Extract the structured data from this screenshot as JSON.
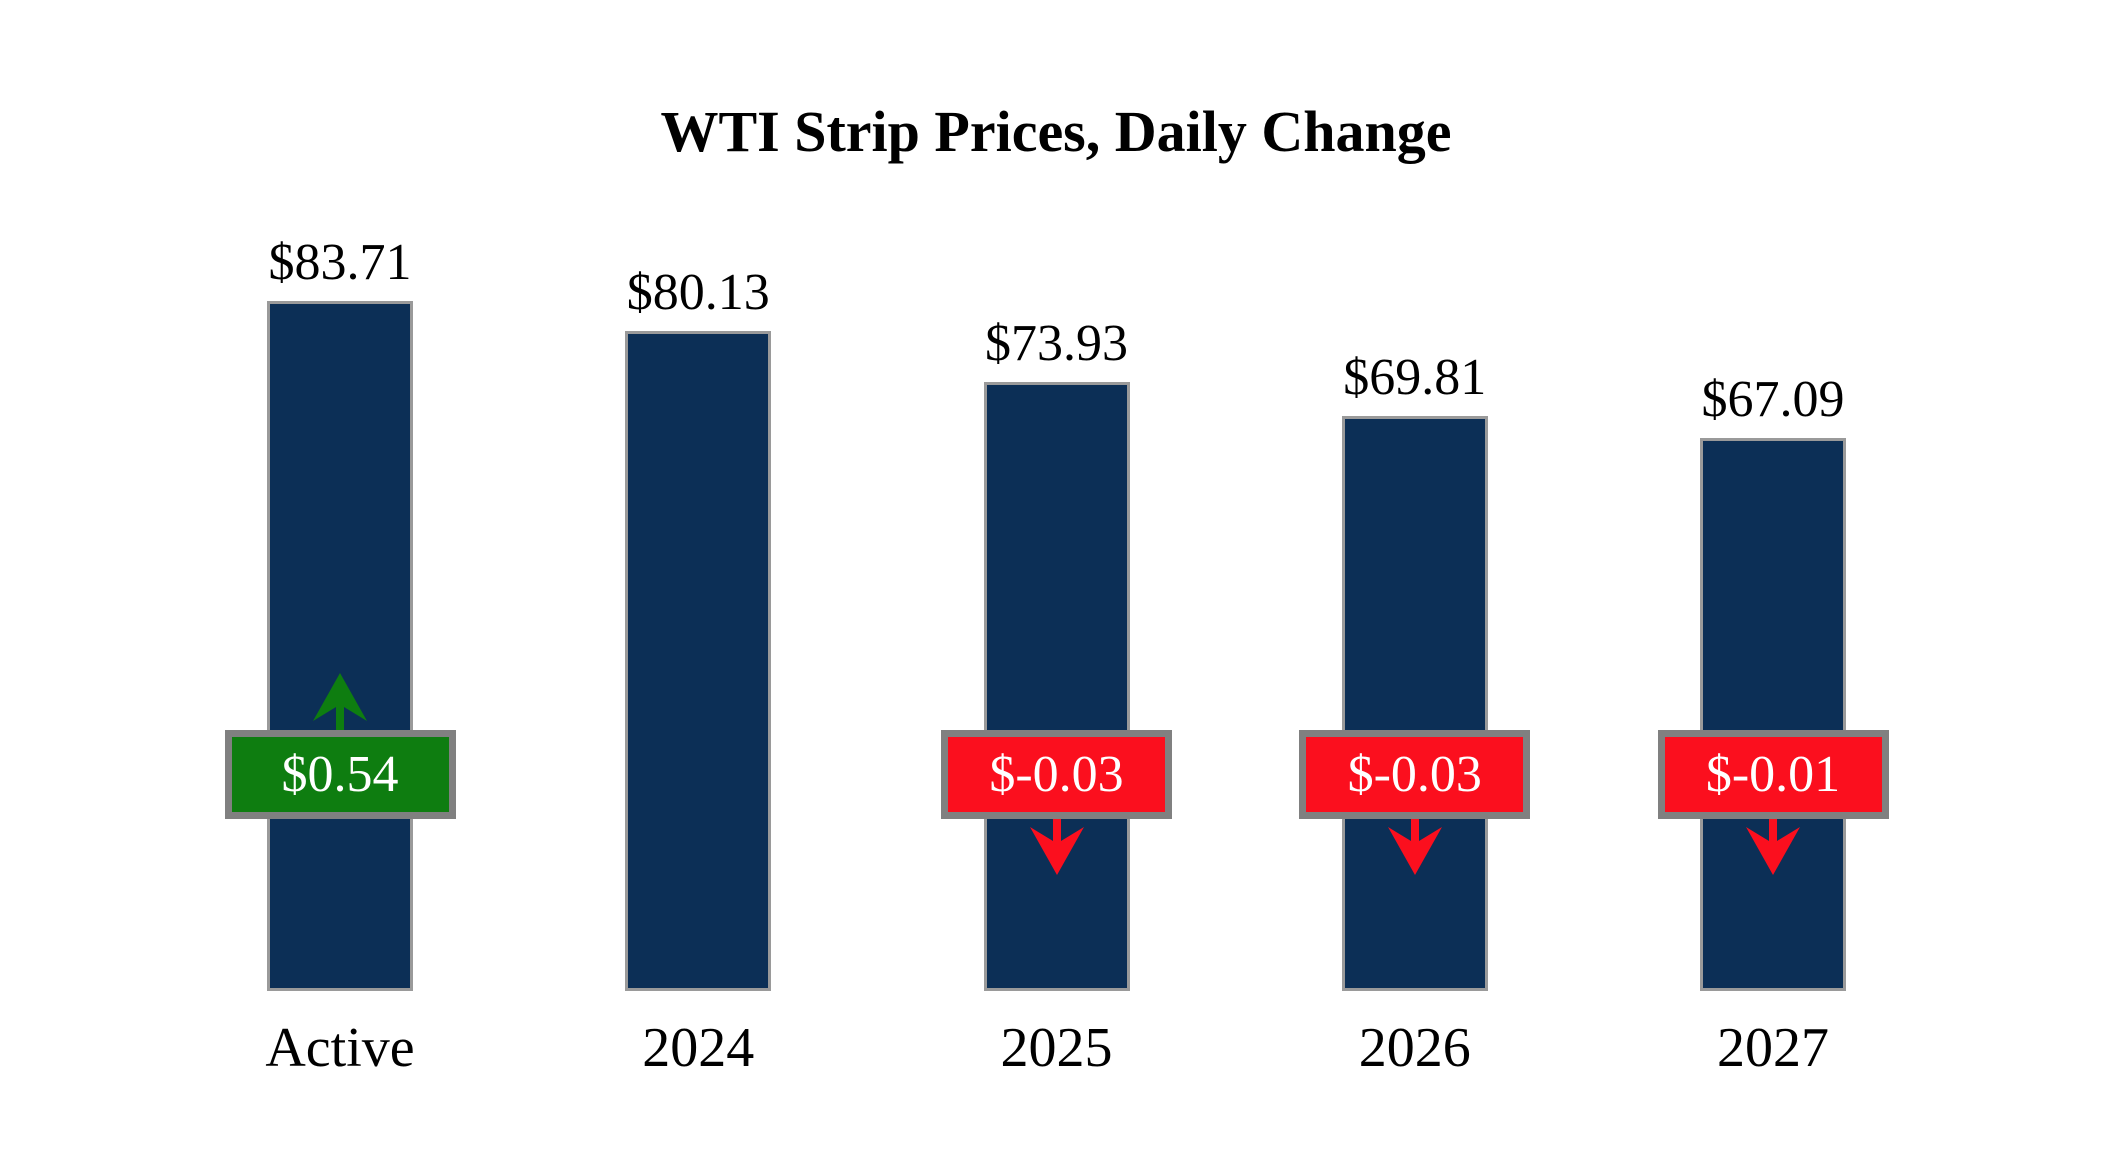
{
  "chart_data": {
    "type": "bar",
    "title": "WTI Strip Prices, Daily Change",
    "categories": [
      "Active",
      "2024",
      "2025",
      "2026",
      "2027"
    ],
    "values": [
      83.71,
      80.13,
      73.93,
      69.81,
      67.09
    ],
    "value_labels": [
      "$83.71",
      "$80.13",
      "$73.93",
      "$69.81",
      "$67.09"
    ],
    "daily_changes": [
      0.54,
      null,
      -0.03,
      -0.03,
      -0.01
    ],
    "change_labels": [
      "$0.54",
      null,
      "$-0.03",
      "$-0.03",
      "$-0.01"
    ],
    "change_directions": [
      "up",
      null,
      "down",
      "down",
      "down"
    ],
    "xlabel": "",
    "ylabel": "",
    "ylim": [
      0,
      115
    ],
    "grid": false,
    "legend": false,
    "axes_hidden": true
  },
  "colors": {
    "bar_fill": "#0C2F56",
    "bar_border": "#9A9A9A",
    "positive": "#0E7D10",
    "negative": "#FB0F1E",
    "badge_border": "#808080",
    "badge_text": "#FFFFFF",
    "text": "#000000",
    "background": "#FFFFFF"
  }
}
